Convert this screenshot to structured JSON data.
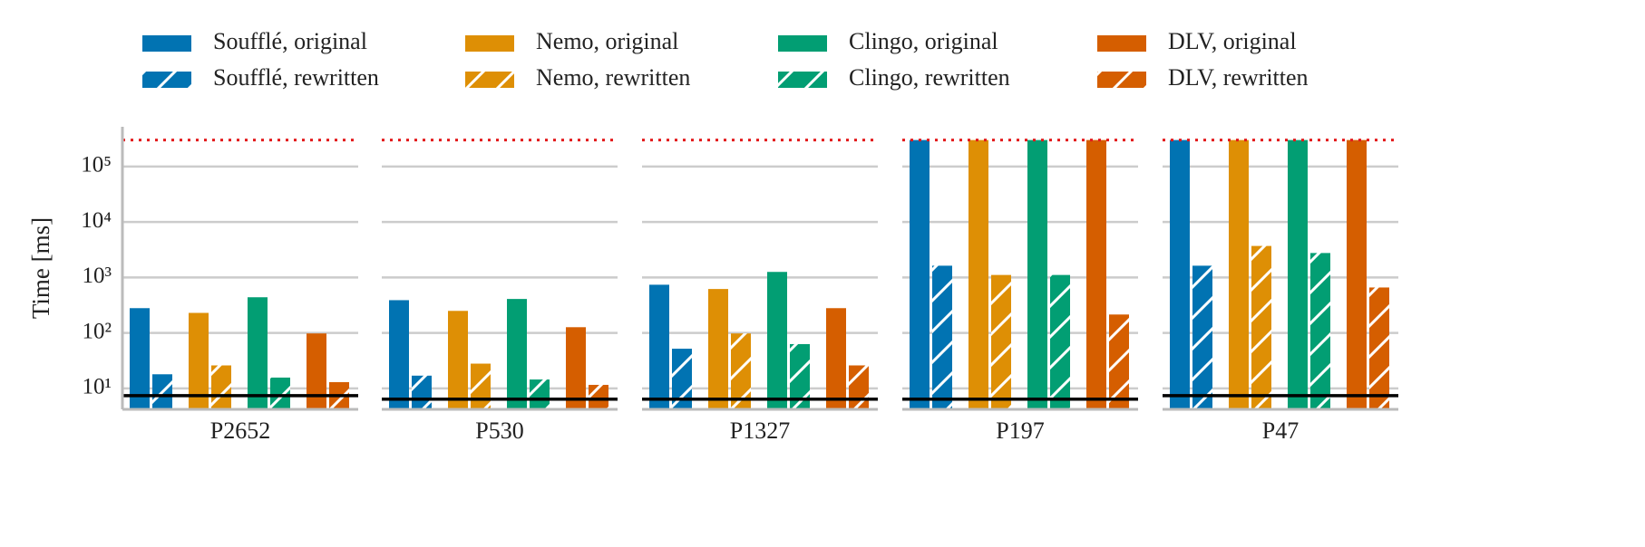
{
  "chart_data": [
    {
      "type": "bar",
      "xlabel": "P2652",
      "ylabel": "Time [ms]",
      "log": true,
      "grid": true,
      "ylim": [
        4.2,
        520000
      ],
      "yticks": [
        {
          "value": 10,
          "label": "10¹"
        },
        {
          "value": 100,
          "label": "10²"
        },
        {
          "value": 1000,
          "label": "10³"
        },
        {
          "value": 10000,
          "label": "10⁴"
        },
        {
          "value": 100000,
          "label": "10⁵"
        }
      ],
      "reference_lines": [
        {
          "value": 300000,
          "color": "#e31a1c",
          "dotted": true
        },
        {
          "value": 7.4,
          "color": "#000000",
          "dotted": false
        }
      ],
      "series": [
        {
          "name": "Soufflé, original",
          "color": "#0173b2",
          "hatch": false,
          "values": [
            280
          ]
        },
        {
          "name": "Soufflé, rewritten",
          "color": "#0173b2",
          "hatch": true,
          "values": [
            18
          ]
        },
        {
          "name": "Nemo, original",
          "color": "#de8f05",
          "hatch": false,
          "values": [
            230
          ]
        },
        {
          "name": "Nemo, rewritten",
          "color": "#de8f05",
          "hatch": true,
          "values": [
            26
          ]
        },
        {
          "name": "Clingo, original",
          "color": "#029e73",
          "hatch": false,
          "values": [
            440
          ]
        },
        {
          "name": "Clingo, rewritten",
          "color": "#029e73",
          "hatch": true,
          "values": [
            15.7
          ]
        },
        {
          "name": "DLV, original",
          "color": "#d55e00",
          "hatch": false,
          "values": [
            98
          ]
        },
        {
          "name": "DLV, rewritten",
          "color": "#d55e00",
          "hatch": true,
          "values": [
            13
          ]
        }
      ]
    },
    {
      "type": "bar",
      "xlabel": "P530",
      "log": true,
      "grid": true,
      "ylim": [
        4.2,
        520000
      ],
      "yticks": [
        10,
        100,
        1000,
        10000,
        100000
      ],
      "reference_lines": [
        {
          "value": 300000,
          "color": "#e31a1c",
          "dotted": true
        },
        {
          "value": 6.4,
          "color": "#000000",
          "dotted": false
        }
      ],
      "series": [
        {
          "name": "Soufflé, original",
          "color": "#0173b2",
          "hatch": false,
          "values": [
            390
          ]
        },
        {
          "name": "Soufflé, rewritten",
          "color": "#0173b2",
          "hatch": true,
          "values": [
            17
          ]
        },
        {
          "name": "Nemo, original",
          "color": "#de8f05",
          "hatch": false,
          "values": [
            250
          ]
        },
        {
          "name": "Nemo, rewritten",
          "color": "#de8f05",
          "hatch": true,
          "values": [
            28
          ]
        },
        {
          "name": "Clingo, original",
          "color": "#029e73",
          "hatch": false,
          "values": [
            410
          ]
        },
        {
          "name": "Clingo, rewritten",
          "color": "#029e73",
          "hatch": true,
          "values": [
            14.5
          ]
        },
        {
          "name": "DLV, original",
          "color": "#d55e00",
          "hatch": false,
          "values": [
            127
          ]
        },
        {
          "name": "DLV, rewritten",
          "color": "#d55e00",
          "hatch": true,
          "values": [
            11.6
          ]
        }
      ]
    },
    {
      "type": "bar",
      "xlabel": "P1327",
      "log": true,
      "grid": true,
      "ylim": [
        4.2,
        520000
      ],
      "yticks": [
        10,
        100,
        1000,
        10000,
        100000
      ],
      "reference_lines": [
        {
          "value": 300000,
          "color": "#e31a1c",
          "dotted": true
        },
        {
          "value": 6.4,
          "color": "#000000",
          "dotted": false
        }
      ],
      "series": [
        {
          "name": "Soufflé, original",
          "color": "#0173b2",
          "hatch": false,
          "values": [
            740
          ]
        },
        {
          "name": "Soufflé, rewritten",
          "color": "#0173b2",
          "hatch": true,
          "values": [
            52
          ]
        },
        {
          "name": "Nemo, original",
          "color": "#de8f05",
          "hatch": false,
          "values": [
            620
          ]
        },
        {
          "name": "Nemo, rewritten",
          "color": "#de8f05",
          "hatch": true,
          "values": [
            98
          ]
        },
        {
          "name": "Clingo, original",
          "color": "#029e73",
          "hatch": false,
          "values": [
            1260
          ]
        },
        {
          "name": "Clingo, rewritten",
          "color": "#029e73",
          "hatch": true,
          "values": [
            63
          ]
        },
        {
          "name": "DLV, original",
          "color": "#d55e00",
          "hatch": false,
          "values": [
            280
          ]
        },
        {
          "name": "DLV, rewritten",
          "color": "#d55e00",
          "hatch": true,
          "values": [
            26
          ]
        }
      ]
    },
    {
      "type": "bar",
      "xlabel": "P197",
      "log": true,
      "grid": true,
      "ylim": [
        4.2,
        520000
      ],
      "yticks": [
        10,
        100,
        1000,
        10000,
        100000
      ],
      "reference_lines": [
        {
          "value": 300000,
          "color": "#e31a1c",
          "dotted": true
        },
        {
          "value": 6.4,
          "color": "#000000",
          "dotted": false
        }
      ],
      "series": [
        {
          "name": "Soufflé, original",
          "color": "#0173b2",
          "hatch": false,
          "values": [
            300000
          ]
        },
        {
          "name": "Soufflé, rewritten",
          "color": "#0173b2",
          "hatch": true,
          "values": [
            1630
          ]
        },
        {
          "name": "Nemo, original",
          "color": "#de8f05",
          "hatch": false,
          "values": [
            300000
          ]
        },
        {
          "name": "Nemo, rewritten",
          "color": "#de8f05",
          "hatch": true,
          "values": [
            1110
          ]
        },
        {
          "name": "Clingo, original",
          "color": "#029e73",
          "hatch": false,
          "values": [
            300000
          ]
        },
        {
          "name": "Clingo, rewritten",
          "color": "#029e73",
          "hatch": true,
          "values": [
            1110
          ]
        },
        {
          "name": "DLV, original",
          "color": "#d55e00",
          "hatch": false,
          "values": [
            300000
          ]
        },
        {
          "name": "DLV, rewritten",
          "color": "#d55e00",
          "hatch": true,
          "values": [
            215
          ]
        }
      ]
    },
    {
      "type": "bar",
      "xlabel": "P47",
      "log": true,
      "grid": true,
      "ylim": [
        4.2,
        520000
      ],
      "yticks": [
        10,
        100,
        1000,
        10000,
        100000
      ],
      "reference_lines": [
        {
          "value": 300000,
          "color": "#e31a1c",
          "dotted": true
        },
        {
          "value": 7.4,
          "color": "#000000",
          "dotted": false
        }
      ],
      "series": [
        {
          "name": "Soufflé, original",
          "color": "#0173b2",
          "hatch": false,
          "values": [
            300000
          ]
        },
        {
          "name": "Soufflé, rewritten",
          "color": "#0173b2",
          "hatch": true,
          "values": [
            1630
          ]
        },
        {
          "name": "Nemo, original",
          "color": "#de8f05",
          "hatch": false,
          "values": [
            300000
          ]
        },
        {
          "name": "Nemo, rewritten",
          "color": "#de8f05",
          "hatch": true,
          "values": [
            3700
          ]
        },
        {
          "name": "Clingo, original",
          "color": "#029e73",
          "hatch": false,
          "values": [
            300000
          ]
        },
        {
          "name": "Clingo, rewritten",
          "color": "#029e73",
          "hatch": true,
          "values": [
            2760
          ]
        },
        {
          "name": "DLV, original",
          "color": "#d55e00",
          "hatch": false,
          "values": [
            300000
          ]
        },
        {
          "name": "DLV, rewritten",
          "color": "#d55e00",
          "hatch": true,
          "values": [
            660
          ]
        }
      ]
    }
  ]
}
